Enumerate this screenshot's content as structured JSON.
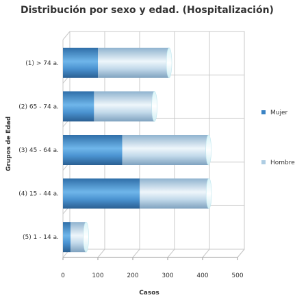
{
  "chart_data": {
    "type": "bar",
    "orientation": "horizontal",
    "stacked": true,
    "three_d": true,
    "title": "Distribución por sexo y edad. (Hospitalización)",
    "xlabel": "Casos",
    "ylabel": "Grupos de Edad",
    "xlim": [
      0,
      500
    ],
    "x_ticks": [
      "0",
      "100",
      "200",
      "300",
      "400",
      "500"
    ],
    "grid": true,
    "legend_position": "right",
    "categories": [
      "(1) > 74 a.",
      "(2) 65 - 74 a.",
      "(3) 45 - 64 a.",
      "(4) 15 - 44 a.",
      "(5) 1 - 14 a."
    ],
    "series": [
      {
        "name": "Mujer",
        "color": "#3a83c4",
        "values": [
          100,
          89,
          170,
          220,
          22
        ]
      },
      {
        "name": "Hombre",
        "color": "#aecde3",
        "values": [
          204,
          173,
          247,
          198,
          44
        ]
      }
    ]
  }
}
